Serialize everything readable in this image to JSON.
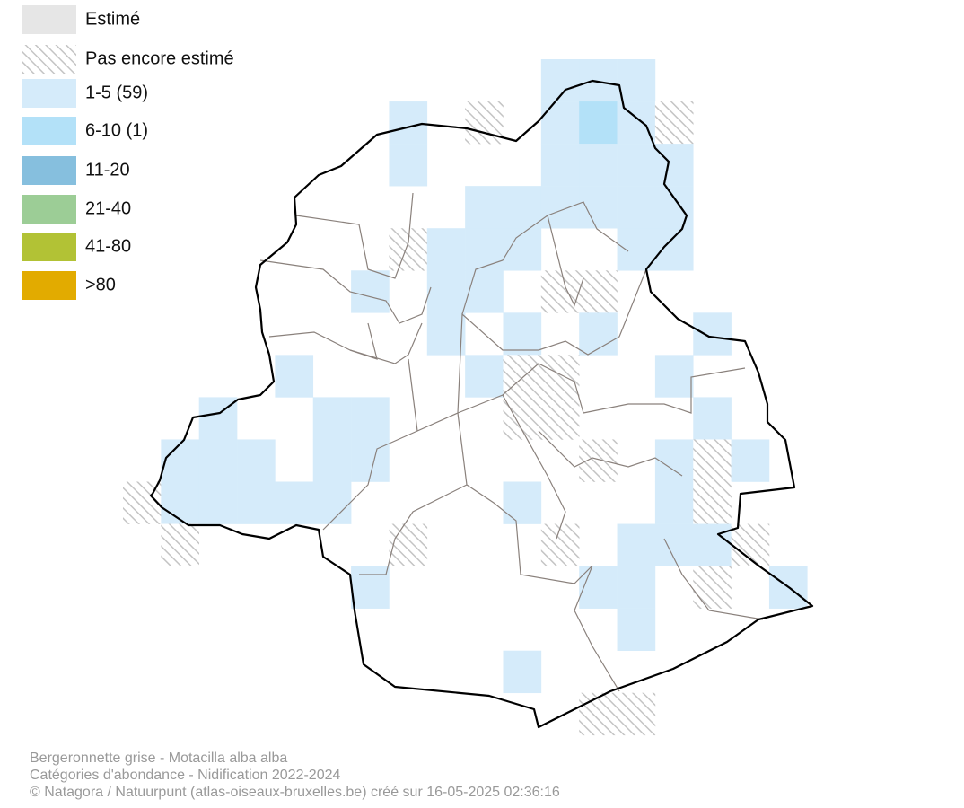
{
  "legend": [
    {
      "label": "Estimé",
      "color": "#e6e6e6"
    },
    {
      "label": "Pas encore estimé",
      "pattern": "hatch"
    },
    {
      "label": "1-5 (59)",
      "color": "#d5ebfa"
    },
    {
      "label": "6-10 (1)",
      "color": "#b3e1f8"
    },
    {
      "label": "11-20",
      "color": "#86bfde"
    },
    {
      "label": "21-40",
      "color": "#9ccd96"
    },
    {
      "label": "41-80",
      "color": "#b2c235"
    },
    {
      "label": ">80",
      "color": "#e2ab00"
    }
  ],
  "footer": [
    "Bergeronnette grise - Motacilla alba alba",
    "Catégories d'abondance - Nidification 2022-2024",
    "© Natagora / Natuurpunt (atlas-oiseaux-bruxelles.be) créé sur 16-05-2025 02:36:16"
  ]
}
